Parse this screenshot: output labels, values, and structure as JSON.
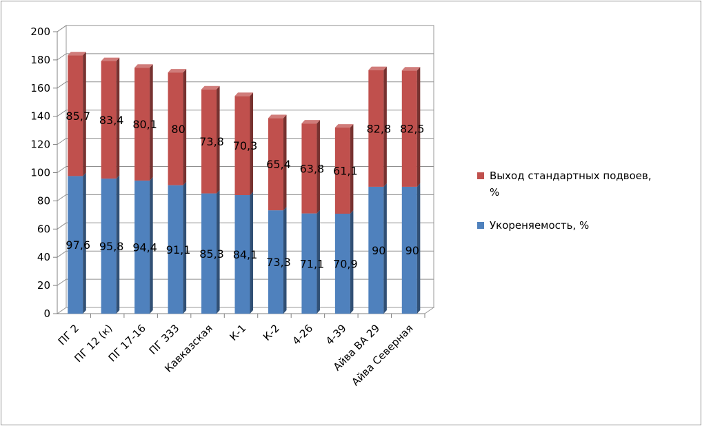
{
  "chart_data": {
    "type": "bar",
    "stacked": true,
    "three_d": true,
    "categories": [
      "ПГ 2",
      "ПГ 12 (к)",
      "ПГ 17-16",
      "ПГ 333",
      "Кавказская",
      "К-1",
      "К-2",
      "4-26",
      "4-39",
      "Айва ВА 29",
      "Айва Северная"
    ],
    "series": [
      {
        "name": "Укореняемость, %",
        "color": "#4f81bd",
        "values": [
          97.6,
          95.8,
          94.4,
          91.1,
          85.3,
          84.1,
          73.3,
          71.1,
          70.9,
          90,
          90
        ],
        "labels": [
          "97,6",
          "95,8",
          "94,4",
          "91,1",
          "85,3",
          "84,1",
          "73,3",
          "71,1",
          "70,9",
          "90",
          "90"
        ]
      },
      {
        "name": "Выход стандартных подвоев, %",
        "color": "#c0504d",
        "values": [
          85.7,
          83.4,
          80.1,
          80,
          73.8,
          70.3,
          65.4,
          63.8,
          61.1,
          82.8,
          82.5
        ],
        "labels": [
          "85,7",
          "83,4",
          "80,1",
          "80",
          "73,8",
          "70,3",
          "65,4",
          "63,8",
          "61,1",
          "82,8",
          "82,5"
        ]
      }
    ],
    "y_ticks": [
      "0",
      "20",
      "40",
      "60",
      "80",
      "100",
      "120",
      "140",
      "160",
      "180",
      "200"
    ],
    "ylim": [
      0,
      200
    ],
    "grid": true,
    "legend_position": "right",
    "legend": {
      "entries": [
        {
          "lines": [
            "Выход стандартных подвоев,",
            "%"
          ],
          "color": "#c0504d"
        },
        {
          "lines": [
            "Укореняемость,  %"
          ],
          "color": "#4f81bd"
        }
      ]
    }
  }
}
